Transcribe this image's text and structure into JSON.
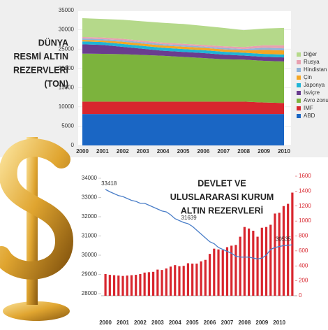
{
  "chart_data": [
    {
      "type": "area",
      "title": [
        "DÜNYA",
        "RESMİ ALTIN",
        "REZERVLERİ",
        "(TON)"
      ],
      "x": [
        2000,
        2001,
        2002,
        2003,
        2004,
        2005,
        2006,
        2007,
        2008,
        2009,
        2010
      ],
      "xlim": [
        2000,
        2010
      ],
      "xticks": [
        2000,
        2001,
        2002,
        2003,
        2004,
        2005,
        2006,
        2007,
        2008,
        2009,
        2010
      ],
      "ylim": [
        0,
        35000
      ],
      "yticks": [
        0,
        5000,
        10000,
        15000,
        20000,
        25000,
        30000,
        35000
      ],
      "stacked": true,
      "series": [
        {
          "name": "ABD",
          "color": "#1a66c4",
          "values": [
            8140,
            8140,
            8140,
            8140,
            8140,
            8140,
            8140,
            8140,
            8140,
            8140,
            8140
          ]
        },
        {
          "name": "IMF",
          "color": "#d8262e",
          "values": [
            3220,
            3220,
            3220,
            3220,
            3220,
            3220,
            3220,
            3220,
            3220,
            3000,
            2850
          ]
        },
        {
          "name": "Avro zonu",
          "color": "#7cb33d",
          "values": [
            12450,
            12400,
            12300,
            12100,
            11900,
            11600,
            11300,
            11000,
            10900,
            10800,
            10800
          ]
        },
        {
          "name": "İsviçre",
          "color": "#6a3d8f",
          "values": [
            2420,
            2300,
            1900,
            1600,
            1300,
            1300,
            1300,
            1200,
            1040,
            1040,
            1040
          ]
        },
        {
          "name": "Japonya",
          "color": "#1fb5d6",
          "values": [
            750,
            750,
            750,
            750,
            750,
            750,
            750,
            750,
            750,
            750,
            750
          ]
        },
        {
          "name": "Çin",
          "color": "#f5a623",
          "values": [
            400,
            400,
            600,
            600,
            600,
            600,
            600,
            600,
            600,
            1054,
            1054
          ]
        },
        {
          "name": "Hindistan",
          "color": "#8fb4d8",
          "values": [
            360,
            360,
            360,
            360,
            360,
            360,
            360,
            360,
            360,
            560,
            560
          ]
        },
        {
          "name": "Rusya",
          "color": "#e8a0b0",
          "values": [
            380,
            420,
            390,
            390,
            390,
            390,
            400,
            450,
            520,
            640,
            780
          ]
        },
        {
          "name": "Diğer",
          "color": "#b5d98a",
          "values": [
            4880,
            4810,
            4940,
            5040,
            5140,
            5140,
            4930,
            4780,
            4370,
            4316,
            4526
          ]
        }
      ]
    },
    {
      "type": "combo",
      "title": [
        "DEVLET VE",
        "ULUSLARARASI KURUM",
        "ALTIN REZERVLERİ"
      ],
      "categories": [
        "2000",
        null,
        null,
        null,
        "2001",
        null,
        null,
        null,
        "2002",
        null,
        null,
        null,
        "2003",
        null,
        null,
        null,
        "2004",
        null,
        null,
        null,
        "2005",
        null,
        null,
        null,
        "2006",
        null,
        null,
        null,
        "2007",
        null,
        null,
        null,
        "2008",
        null,
        null,
        null,
        "2009",
        null,
        null,
        null,
        "2010",
        null,
        null,
        null
      ],
      "ylim": [
        28000,
        34000
      ],
      "yticks": [
        28000,
        29000,
        30000,
        31000,
        32000,
        33000,
        34000
      ],
      "y2lim": [
        0,
        1600
      ],
      "y2ticks": [
        0,
        200,
        400,
        600,
        800,
        1000,
        1200,
        1400,
        1600
      ],
      "series": [
        {
          "type": "line",
          "color": "#4a7ec8",
          "data_labels": [
            0,
            19,
            43
          ],
          "values": [
            33418,
            33300,
            33200,
            33100,
            33050,
            32950,
            32850,
            32800,
            32700,
            32700,
            32600,
            32500,
            32400,
            32300,
            32250,
            32100,
            31900,
            31800,
            31700,
            31639,
            31500,
            31300,
            31100,
            30900,
            30700,
            30600,
            30400,
            30300,
            30200,
            30100,
            29950,
            29900,
            29900,
            29900,
            29850,
            29800,
            29850,
            30000,
            30300,
            30400,
            30450,
            30500,
            30520,
            30535
          ]
        },
        {
          "type": "bar",
          "axis": "y2",
          "color": "#d8262e",
          "values": [
            290,
            280,
            275,
            270,
            265,
            270,
            275,
            280,
            290,
            310,
            315,
            320,
            350,
            345,
            365,
            390,
            410,
            395,
            400,
            435,
            430,
            430,
            460,
            480,
            560,
            630,
            620,
            610,
            650,
            670,
            680,
            790,
            920,
            900,
            870,
            790,
            910,
            920,
            950,
            1100,
            1110,
            1200,
            1230,
            1380
          ]
        }
      ]
    }
  ]
}
